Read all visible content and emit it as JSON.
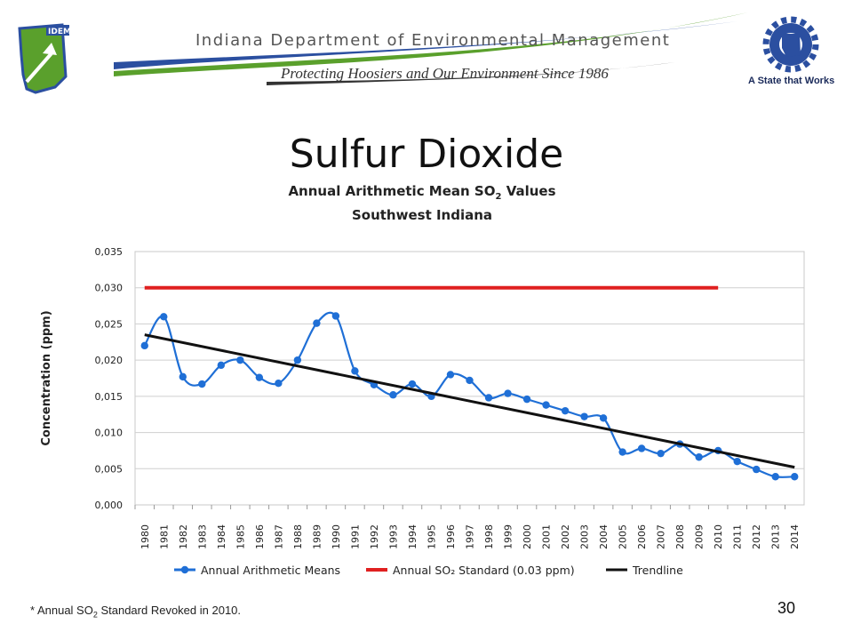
{
  "header": {
    "agency_name": "Indiana Department of Environmental Management",
    "tagline": "Protecting Hoosiers and Our Environment Since 1986",
    "logo_left_text": "IDEM",
    "logo_right_text": "A State that Works"
  },
  "slide": {
    "title": "Sulfur Dioxide",
    "footnote_pre": "* Annual SO",
    "footnote_sub": "2",
    "footnote_post": " Standard Revoked in 2010.",
    "page_number": "30"
  },
  "chart_data": {
    "type": "line",
    "title_pre": "Annual Arithmetic Mean SO",
    "title_sub": "2",
    "title_post": " Values",
    "subtitle": "Southwest Indiana",
    "ylabel": "Concentration (ppm)",
    "xlabel": "",
    "ylim": [
      0,
      0.035
    ],
    "y_ticks": [
      "0,000",
      "0,005",
      "0,010",
      "0,015",
      "0,020",
      "0,025",
      "0,030",
      "0,035"
    ],
    "grid": true,
    "legend_position": "bottom",
    "categories": [
      "1980",
      "1981",
      "1982",
      "1983",
      "1984",
      "1985",
      "1986",
      "1987",
      "1988",
      "1989",
      "1990",
      "1991",
      "1992",
      "1993",
      "1994",
      "1995",
      "1996",
      "1997",
      "1998",
      "1999",
      "2000",
      "2001",
      "2002",
      "2003",
      "2004",
      "2005",
      "2006",
      "2007",
      "2008",
      "2009",
      "2010",
      "2011",
      "2012",
      "2013",
      "2014"
    ],
    "series": [
      {
        "name": "Annual Arithmetic Means",
        "color": "#1f6fd6",
        "style": "smooth-line-markers",
        "values": [
          0.022,
          0.026,
          0.0177,
          0.0167,
          0.0193,
          0.02,
          0.0176,
          0.0168,
          0.02,
          0.0251,
          0.0261,
          0.0185,
          0.0166,
          0.0152,
          0.0167,
          0.015,
          0.018,
          0.0172,
          0.0148,
          0.0154,
          0.0146,
          0.0138,
          0.013,
          0.0122,
          0.012,
          0.0073,
          0.0078,
          0.0071,
          0.0084,
          0.0066,
          0.0075,
          0.006,
          0.0049,
          0.0039,
          0.0039
        ]
      },
      {
        "name": "Annual SO₂ Standard (0.03 ppm)",
        "color": "#e02020",
        "style": "line",
        "x": [
          "1980",
          "2010"
        ],
        "values": [
          0.03,
          0.03
        ]
      },
      {
        "name": "Trendline",
        "color": "#111111",
        "style": "line",
        "x": [
          "1980",
          "2014"
        ],
        "values": [
          0.0235,
          0.0052
        ]
      }
    ]
  }
}
